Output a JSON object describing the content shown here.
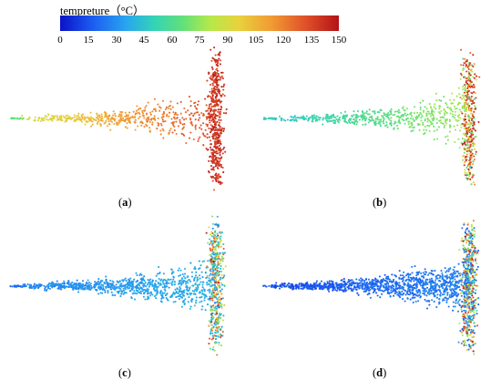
{
  "colorbar": {
    "title": "tempreture（°C）",
    "ticks": [
      "0",
      "15",
      "30",
      "45",
      "60",
      "75",
      "90",
      "105",
      "120",
      "135",
      "150"
    ]
  },
  "panels": [
    {
      "label_open": "(",
      "label_letter": "a",
      "label_close": ")"
    },
    {
      "label_open": "(",
      "label_letter": "b",
      "label_close": ")"
    },
    {
      "label_open": "(",
      "label_letter": "c",
      "label_close": ")"
    },
    {
      "label_open": "(",
      "label_letter": "d",
      "label_close": ")"
    }
  ]
}
